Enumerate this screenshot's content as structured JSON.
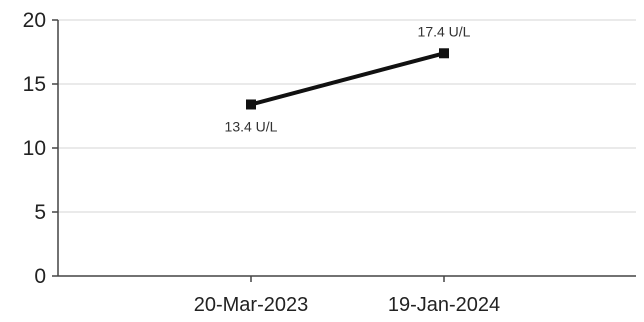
{
  "chart_data": {
    "type": "line",
    "title": "",
    "xlabel": "",
    "ylabel": "",
    "ylim": [
      0,
      20
    ],
    "yticks": [
      0,
      5,
      10,
      15,
      20
    ],
    "grid": true,
    "categories": [
      "20-Mar-2023",
      "19-Jan-2024"
    ],
    "series": [
      {
        "values": [
          13.4,
          17.4
        ],
        "labels": [
          "13.4 U/L",
          "17.4 U/L"
        ],
        "label_positions": [
          "below",
          "above"
        ],
        "color": "#111111"
      }
    ]
  }
}
